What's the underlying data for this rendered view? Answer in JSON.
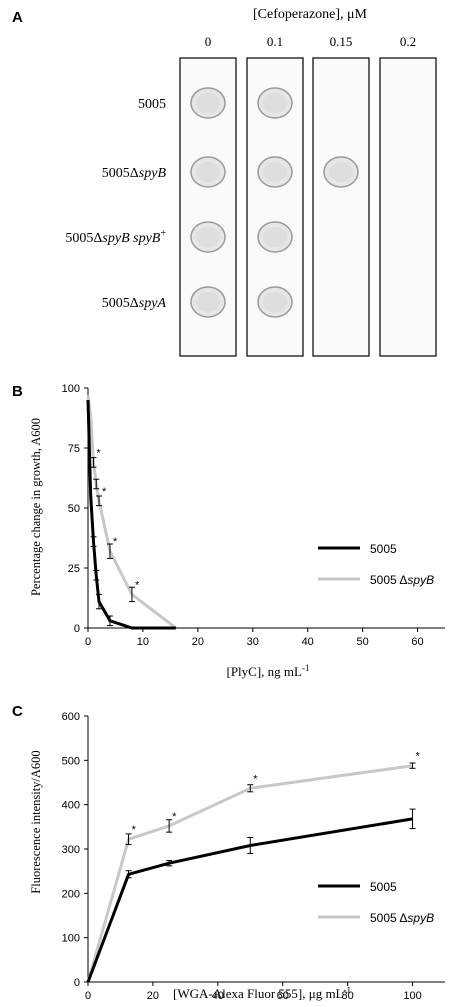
{
  "panels": {
    "A": {
      "letter": "A",
      "title": "[Cefoperazone],  μM",
      "concentrations": [
        "0",
        "0.1",
        "0.15",
        "0.2"
      ],
      "strains": [
        {
          "base": "5005",
          "italic": "",
          "suffix": "",
          "sup": ""
        },
        {
          "base": "5005Δ",
          "italic": "spyB",
          "suffix": "",
          "sup": ""
        },
        {
          "base": "5005Δ",
          "italic": "spyB spyB",
          "suffix": "",
          "sup": "+"
        },
        {
          "base": "5005Δ",
          "italic": "spyA",
          "suffix": "",
          "sup": ""
        }
      ],
      "growth": [
        [
          1,
          1,
          0,
          0
        ],
        [
          1,
          1,
          1,
          0
        ],
        [
          1,
          1,
          0,
          0
        ],
        [
          1,
          1,
          0,
          0
        ]
      ]
    },
    "B": {
      "letter": "B",
      "ylabel": "Percentage change in growth, A600",
      "xlabel_main": "[PlyC],  ng mL",
      "xlabel_sup": "-1",
      "legend": [
        {
          "label": "5005",
          "italic": ""
        },
        {
          "label": "5005 Δ",
          "italic": "spyB"
        }
      ]
    },
    "C": {
      "letter": "C",
      "ylabel": "Fluorescence intensity/A600",
      "xlabel_main": "[WGA-Alexa  Fluor 555],  μg mL",
      "xlabel_sup": "-1",
      "legend": [
        {
          "label": "5005",
          "italic": ""
        },
        {
          "label": "5005 Δ",
          "italic": "spyB"
        }
      ]
    }
  },
  "chart_data": [
    {
      "type": "line",
      "panel": "B",
      "xlim": [
        0,
        65
      ],
      "ylim": [
        0,
        100
      ],
      "xticks": [
        "0",
        "10",
        "20",
        "30",
        "40",
        "50",
        "60"
      ],
      "yticks": [
        "0",
        "25",
        "50",
        "75",
        "100"
      ],
      "series": [
        {
          "name": "5005",
          "color": "#000000",
          "x": [
            0,
            0.5,
            1,
            1.5,
            2,
            4,
            8,
            16
          ],
          "y": [
            95,
            55,
            36,
            22,
            11,
            3,
            0,
            0
          ],
          "err": [
            0,
            0,
            2,
            2,
            3,
            2,
            0,
            0
          ]
        },
        {
          "name": "5005 ΔspyB",
          "color": "#c8c8c8",
          "x": [
            0,
            0.5,
            1,
            1.5,
            2,
            4,
            8,
            16
          ],
          "y": [
            97,
            88,
            69,
            60,
            53,
            32,
            14,
            0
          ],
          "err": [
            0,
            0,
            2,
            2,
            2,
            3,
            3,
            0
          ]
        }
      ],
      "significance": [
        {
          "x": 1,
          "y": 69,
          "label": "*"
        },
        {
          "x": 2,
          "y": 53,
          "label": "*"
        },
        {
          "x": 4,
          "y": 32,
          "label": "*"
        },
        {
          "x": 8,
          "y": 14,
          "label": "*"
        }
      ],
      "legend_position": "right"
    },
    {
      "type": "line",
      "panel": "C",
      "xlim": [
        0,
        110
      ],
      "ylim": [
        0,
        600
      ],
      "xticks": [
        "0",
        "20",
        "40",
        "60",
        "80",
        "100"
      ],
      "yticks": [
        "0",
        "100",
        "200",
        "300",
        "400",
        "500",
        "600"
      ],
      "series": [
        {
          "name": "5005",
          "color": "#000000",
          "x": [
            0,
            12.5,
            25,
            50,
            100
          ],
          "y": [
            0,
            243,
            268,
            308,
            368
          ],
          "err": [
            0,
            8,
            6,
            18,
            22
          ]
        },
        {
          "name": "5005 ΔspyB",
          "color": "#c8c8c8",
          "x": [
            0,
            12.5,
            25,
            50,
            100
          ],
          "y": [
            0,
            322,
            352,
            437,
            488
          ],
          "err": [
            0,
            12,
            14,
            8,
            6
          ]
        }
      ],
      "significance": [
        {
          "x": 12.5,
          "y": 322,
          "label": "*"
        },
        {
          "x": 25,
          "y": 352,
          "label": "*"
        },
        {
          "x": 50,
          "y": 437,
          "label": "*"
        },
        {
          "x": 100,
          "y": 488,
          "label": "*"
        }
      ],
      "legend_position": "bottom-right"
    }
  ]
}
